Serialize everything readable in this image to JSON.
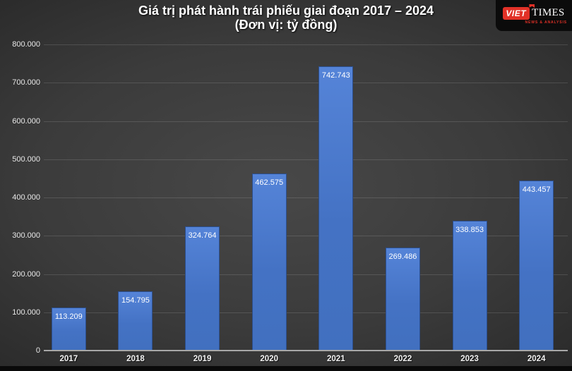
{
  "title": {
    "line1": "Giá trị phát hành trái phiếu giai đoạn 2017 – 2024",
    "line2": "(Đơn vị: tỷ đồng)"
  },
  "logo": {
    "part1": "VIET",
    "part2": "TIMES",
    "tagline": "NEWS & ANALYSIS",
    "brand_red": "#e23127",
    "patch_bg": "#0b0b0b"
  },
  "colors": {
    "bar_fill": "#4472c4",
    "bar_border": "#2c4f8e",
    "background_center": "#484848",
    "background_edge": "#1f1f1f",
    "text": "#ffffff"
  },
  "chart_data": {
    "type": "bar",
    "title": "Giá trị phát hành trái phiếu giai đoạn 2017 – 2024",
    "subtitle": "(Đơn vị: tỷ đồng)",
    "categories": [
      "2017",
      "2018",
      "2019",
      "2020",
      "2021",
      "2022",
      "2023",
      "2024"
    ],
    "values": [
      113209,
      154795,
      324764,
      462575,
      742743,
      269486,
      338853,
      443457
    ],
    "value_labels": [
      "113.209",
      "154.795",
      "324.764",
      "462.575",
      "742.743",
      "269.486",
      "338.853",
      "443.457"
    ],
    "y_ticks": [
      "800.000",
      "700.000",
      "600.000",
      "500.000",
      "400.000",
      "300.000",
      "200.000",
      "100.000",
      "0"
    ],
    "ylim": [
      0,
      800000
    ],
    "xlabel": "",
    "ylabel": "",
    "grid": true,
    "legend": false,
    "legend_position": "none"
  }
}
